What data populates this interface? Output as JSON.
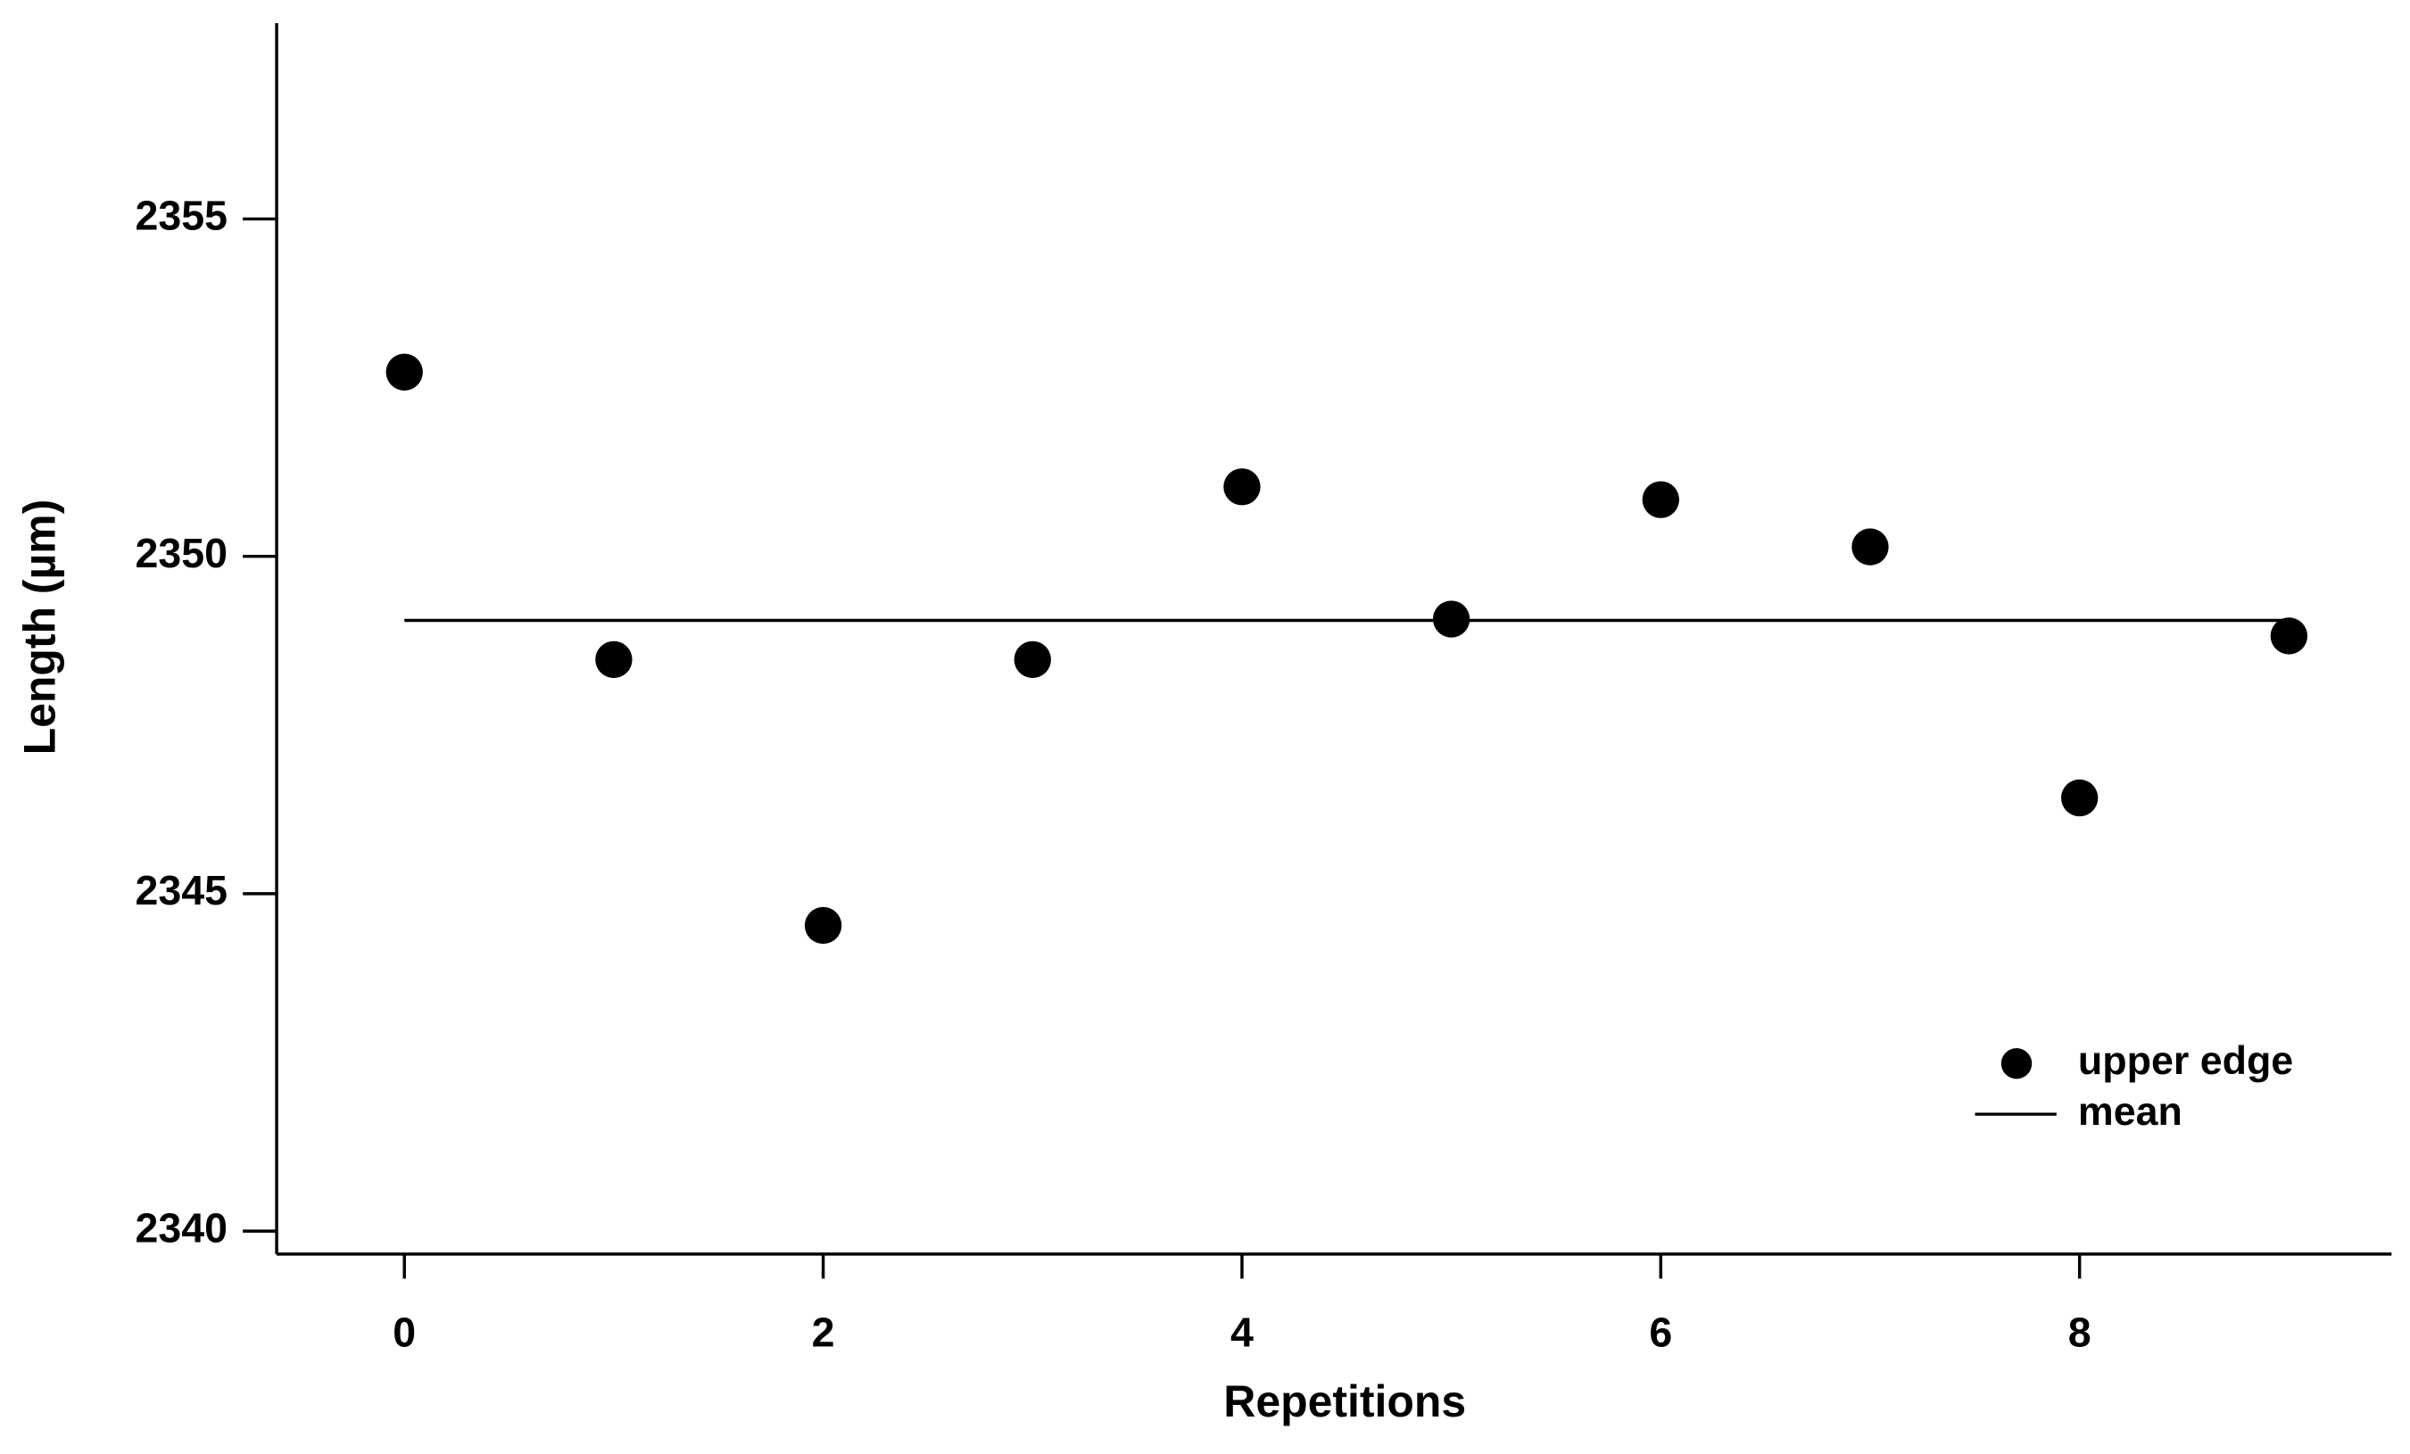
{
  "chart_data": {
    "type": "scatter",
    "x_label": "Repetitions",
    "y_label": "Length (µm)",
    "series": [
      {
        "name": "upper edge",
        "type": "scatter",
        "color": "#000000",
        "x": [
          0,
          1,
          2,
          3,
          4,
          5,
          6,
          7,
          8,
          9
        ],
        "values": [
          2352.73,
          2348.47,
          2344.53,
          2348.47,
          2351.03,
          2349.07,
          2350.84,
          2350.14,
          2346.42,
          2348.82
        ]
      },
      {
        "name": "mean",
        "type": "line",
        "color": "#000000",
        "x": [
          0,
          9
        ],
        "values": [
          2349.05,
          2349.05
        ]
      }
    ],
    "xlim": [
      -0.61,
      9.49
    ],
    "xticks": [
      0,
      2,
      4,
      6,
      8
    ],
    "ylim": [
      2339.66,
      2357.9
    ],
    "yticks": [
      2340,
      2345,
      2350,
      2355
    ],
    "grid": false,
    "legend": "lower right"
  }
}
